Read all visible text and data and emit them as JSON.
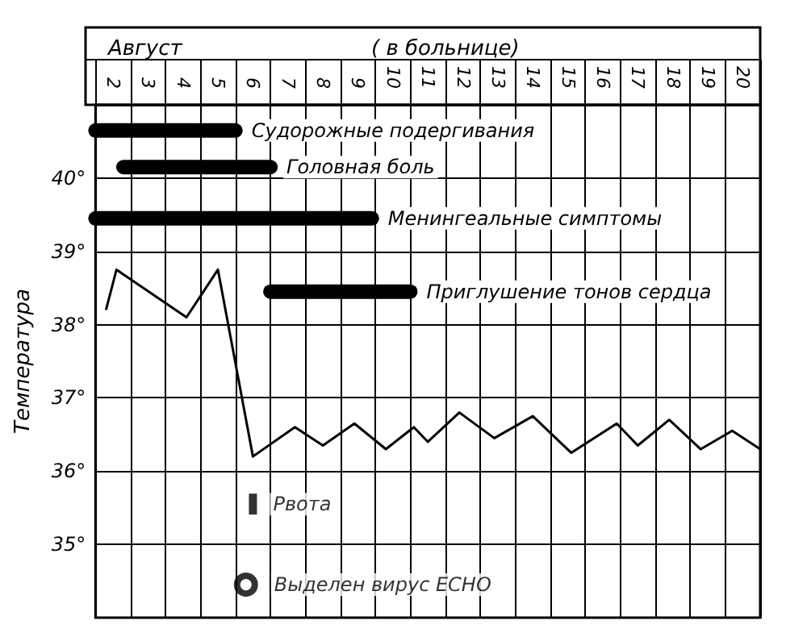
{
  "chart_data": {
    "type": "line",
    "title": "Август",
    "subtitle": "( в больнице)",
    "ylabel": "Температура",
    "xlim": [
      1.5,
      20.5
    ],
    "xticks": [
      {
        "value": 1.5,
        "label": null
      },
      2,
      {
        "value": 2.5,
        "label": null
      },
      3,
      {
        "value": 3.5,
        "label": null
      },
      4,
      {
        "value": 4.5,
        "label": null
      },
      5,
      {
        "value": 5.5,
        "label": null
      },
      6,
      {
        "value": 6.5,
        "label": null
      },
      7,
      {
        "value": 7.5,
        "label": null
      },
      8,
      {
        "value": 8.5,
        "label": null
      },
      9,
      {
        "value": 9.5,
        "label": null
      },
      10,
      {
        "value": 10.5,
        "label": null
      },
      11,
      {
        "value": 11.5,
        "label": null
      },
      12,
      {
        "value": 12.5,
        "label": null
      },
      13,
      {
        "value": 13.5,
        "label": null
      },
      14,
      {
        "value": 14.5,
        "label": null
      },
      15,
      {
        "value": 15.5,
        "label": null
      },
      16,
      {
        "value": 16.5,
        "label": null
      },
      17,
      {
        "value": 17.5,
        "label": null
      },
      18,
      {
        "value": 18.5,
        "label": null
      },
      19,
      {
        "value": 19.5,
        "label": null
      },
      20,
      {
        "value": 20.5,
        "label": null
      }
    ],
    "ylim": [
      34,
      41
    ],
    "yticks": [
      {
        "value": 35,
        "label": "35°"
      },
      {
        "value": 36,
        "label": "36°"
      },
      {
        "value": 37,
        "label": "37°"
      },
      {
        "value": 38,
        "label": "38°"
      },
      {
        "value": 39,
        "label": "39°"
      },
      {
        "value": 40,
        "label": "40°"
      }
    ],
    "grid": true,
    "series": [
      {
        "color": "#000000",
        "x": [
          1.8,
          2.1,
          4.1,
          5.0,
          6.0,
          7.2,
          8.0,
          8.9,
          9.8,
          10.6,
          11.0,
          11.9,
          12.9,
          14.0,
          15.1,
          16.4,
          17.0,
          17.9,
          18.8,
          19.7,
          20.5
        ],
        "values": [
          38.2,
          38.75,
          38.1,
          38.75,
          36.2,
          36.6,
          36.35,
          36.65,
          36.3,
          36.6,
          36.4,
          36.8,
          36.45,
          36.75,
          36.25,
          36.65,
          36.35,
          36.7,
          36.3,
          36.55,
          36.3
        ]
      },
      {
        "name": "Судорожные подергивания",
        "color": "#000000",
        "x": [
          1.5,
          5.5
        ],
        "values": [
          40.65,
          40.65
        ]
      },
      {
        "name": "Головная боль",
        "color": "#000000",
        "x": [
          2.3,
          6.5
        ],
        "values": [
          40.15,
          40.15
        ]
      },
      {
        "name": "Менингеальные симптомы",
        "color": "#000000",
        "x": [
          1.5,
          9.4
        ],
        "values": [
          39.45,
          39.45
        ]
      },
      {
        "name": "Приглушение тонов сердца",
        "color": "#000000",
        "x": [
          6.5,
          10.5
        ],
        "values": [
          38.45,
          38.45
        ]
      },
      {
        "type": "scatter",
        "name": "Рвота",
        "color": "#000000",
        "marker": "square",
        "x": [
          6.0
        ],
        "values": [
          35.55
        ]
      },
      {
        "type": "scatter",
        "name": "Выделен вирус ЕСНО",
        "color": "#000000",
        "marker": "circle",
        "x": [
          5.8
        ],
        "values": [
          34.45
        ]
      }
    ]
  }
}
